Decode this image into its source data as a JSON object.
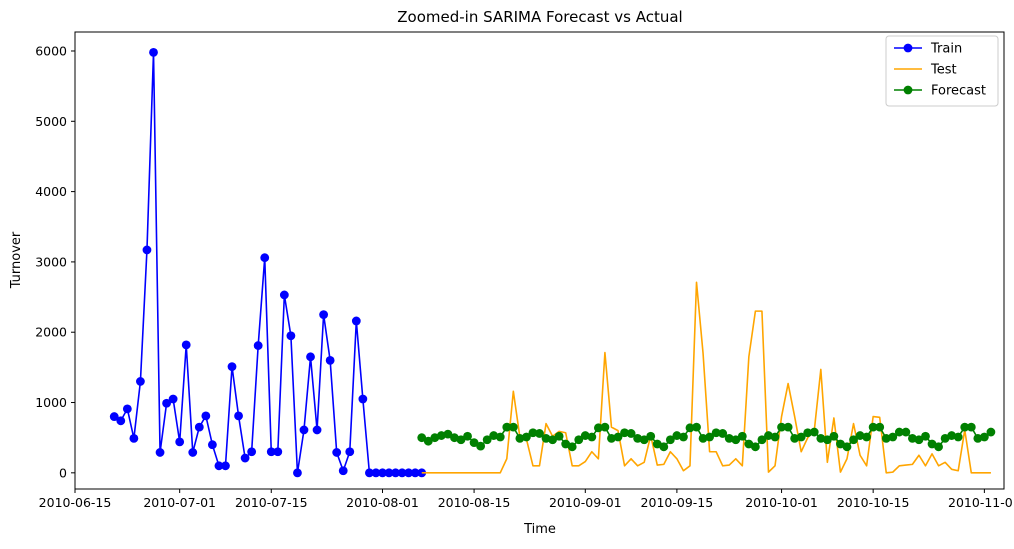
{
  "chart_data": {
    "type": "line",
    "title": "Zoomed-in SARIMA Forecast vs Actual",
    "xlabel": "Time",
    "ylabel": "Turnover",
    "xlim": [
      "2010-06-15",
      "2010-11-04"
    ],
    "ylim": [
      -230,
      6270
    ],
    "x_ticks": [
      "2010-06-15",
      "2010-07-01",
      "2010-07-15",
      "2010-08-01",
      "2010-08-15",
      "2010-09-01",
      "2010-09-15",
      "2010-10-01",
      "2010-10-15",
      "2010-11-01"
    ],
    "y_ticks": [
      0,
      1000,
      2000,
      3000,
      4000,
      5000,
      6000
    ],
    "grid": false,
    "legend_position": "top-right",
    "series": [
      {
        "name": "Train",
        "color": "#0000ff",
        "marker": "circle",
        "style": "line-with-markers",
        "x": [
          "2010-06-21",
          "2010-06-22",
          "2010-06-23",
          "2010-06-24",
          "2010-06-25",
          "2010-06-26",
          "2010-06-27",
          "2010-06-28",
          "2010-06-29",
          "2010-06-30",
          "2010-07-01",
          "2010-07-02",
          "2010-07-03",
          "2010-07-04",
          "2010-07-05",
          "2010-07-06",
          "2010-07-07",
          "2010-07-08",
          "2010-07-09",
          "2010-07-10",
          "2010-07-11",
          "2010-07-12",
          "2010-07-13",
          "2010-07-14",
          "2010-07-15",
          "2010-07-16",
          "2010-07-17",
          "2010-07-18",
          "2010-07-19",
          "2010-07-20",
          "2010-07-21",
          "2010-07-22",
          "2010-07-23",
          "2010-07-24",
          "2010-07-25",
          "2010-07-26",
          "2010-07-27",
          "2010-07-28",
          "2010-07-29",
          "2010-07-30",
          "2010-07-31",
          "2010-08-01",
          "2010-08-02",
          "2010-08-03",
          "2010-08-04",
          "2010-08-05",
          "2010-08-06",
          "2010-08-07"
        ],
        "values": [
          800,
          740,
          910,
          490,
          1300,
          3170,
          5980,
          290,
          990,
          1050,
          440,
          1820,
          290,
          650,
          810,
          400,
          100,
          100,
          1510,
          810,
          210,
          300,
          1810,
          3060,
          300,
          300,
          2530,
          1950,
          0,
          610,
          1650,
          610,
          2250,
          1600,
          290,
          30,
          300,
          2160,
          1050,
          0,
          0,
          0,
          0,
          0,
          0,
          0,
          0,
          0
        ]
      },
      {
        "name": "Test",
        "color": "#ffa500",
        "marker": "none",
        "style": "line",
        "x": [
          "2010-08-07",
          "2010-08-08",
          "2010-08-09",
          "2010-08-10",
          "2010-08-11",
          "2010-08-12",
          "2010-08-13",
          "2010-08-14",
          "2010-08-15",
          "2010-08-16",
          "2010-08-17",
          "2010-08-18",
          "2010-08-19",
          "2010-08-20",
          "2010-08-21",
          "2010-08-22",
          "2010-08-23",
          "2010-08-24",
          "2010-08-25",
          "2010-08-26",
          "2010-08-27",
          "2010-08-28",
          "2010-08-29",
          "2010-08-30",
          "2010-08-31",
          "2010-09-01",
          "2010-09-02",
          "2010-09-03",
          "2010-09-04",
          "2010-09-05",
          "2010-09-06",
          "2010-09-07",
          "2010-09-08",
          "2010-09-09",
          "2010-09-10",
          "2010-09-11",
          "2010-09-12",
          "2010-09-13",
          "2010-09-14",
          "2010-09-15",
          "2010-09-16",
          "2010-09-17",
          "2010-09-18",
          "2010-09-19",
          "2010-09-20",
          "2010-09-21",
          "2010-09-22",
          "2010-09-23",
          "2010-09-24",
          "2010-09-25",
          "2010-09-26",
          "2010-09-27",
          "2010-09-28",
          "2010-09-29",
          "2010-09-30",
          "2010-10-01",
          "2010-10-02",
          "2010-10-03",
          "2010-10-04",
          "2010-10-05",
          "2010-10-06",
          "2010-10-07",
          "2010-10-08",
          "2010-10-09",
          "2010-10-10",
          "2010-10-11",
          "2010-10-12",
          "2010-10-13",
          "2010-10-14",
          "2010-10-15",
          "2010-10-16",
          "2010-10-17",
          "2010-10-18",
          "2010-10-19",
          "2010-10-20",
          "2010-10-21",
          "2010-10-22",
          "2010-10-23",
          "2010-10-24",
          "2010-10-25",
          "2010-10-26",
          "2010-10-27",
          "2010-10-28",
          "2010-10-29",
          "2010-10-30",
          "2010-10-31",
          "2010-11-01",
          "2010-11-02"
        ],
        "values": [
          0,
          0,
          0,
          0,
          0,
          0,
          0,
          0,
          0,
          0,
          0,
          0,
          0,
          200,
          1160,
          510,
          480,
          100,
          100,
          700,
          520,
          590,
          570,
          100,
          100,
          160,
          300,
          200,
          1710,
          650,
          600,
          100,
          200,
          100,
          150,
          530,
          110,
          120,
          300,
          200,
          30,
          100,
          2710,
          1700,
          300,
          300,
          100,
          110,
          200,
          100,
          1650,
          2300,
          2300,
          10,
          100,
          800,
          1270,
          800,
          300,
          500,
          600,
          1470,
          150,
          780,
          10,
          200,
          700,
          250,
          100,
          800,
          790,
          0,
          10,
          100,
          110,
          120,
          250,
          100,
          270,
          100,
          150,
          50,
          30,
          610,
          0,
          0,
          0,
          0
        ]
      },
      {
        "name": "Forecast",
        "color": "#008000",
        "marker": "circle",
        "style": "line-with-markers",
        "x": [
          "2010-08-07",
          "2010-08-08",
          "2010-08-09",
          "2010-08-10",
          "2010-08-11",
          "2010-08-12",
          "2010-08-13",
          "2010-08-14",
          "2010-08-15",
          "2010-08-16",
          "2010-08-17",
          "2010-08-18",
          "2010-08-19",
          "2010-08-20",
          "2010-08-21",
          "2010-08-22",
          "2010-08-23",
          "2010-08-24",
          "2010-08-25",
          "2010-08-26",
          "2010-08-27",
          "2010-08-28",
          "2010-08-29",
          "2010-08-30",
          "2010-08-31",
          "2010-09-01",
          "2010-09-02",
          "2010-09-03",
          "2010-09-04",
          "2010-09-05",
          "2010-09-06",
          "2010-09-07",
          "2010-09-08",
          "2010-09-09",
          "2010-09-10",
          "2010-09-11",
          "2010-09-12",
          "2010-09-13",
          "2010-09-14",
          "2010-09-15",
          "2010-09-16",
          "2010-09-17",
          "2010-09-18",
          "2010-09-19",
          "2010-09-20",
          "2010-09-21",
          "2010-09-22",
          "2010-09-23",
          "2010-09-24",
          "2010-09-25",
          "2010-09-26",
          "2010-09-27",
          "2010-09-28",
          "2010-09-29",
          "2010-09-30",
          "2010-10-01",
          "2010-10-02",
          "2010-10-03",
          "2010-10-04",
          "2010-10-05",
          "2010-10-06",
          "2010-10-07",
          "2010-10-08",
          "2010-10-09",
          "2010-10-10",
          "2010-10-11",
          "2010-10-12",
          "2010-10-13",
          "2010-10-14",
          "2010-10-15",
          "2010-10-16",
          "2010-10-17",
          "2010-10-18",
          "2010-10-19",
          "2010-10-20",
          "2010-10-21",
          "2010-10-22",
          "2010-10-23",
          "2010-10-24",
          "2010-10-25",
          "2010-10-26",
          "2010-10-27",
          "2010-10-28",
          "2010-10-29",
          "2010-10-30",
          "2010-10-31",
          "2010-11-01",
          "2010-11-02"
        ],
        "values": [
          500,
          450,
          500,
          530,
          550,
          500,
          470,
          520,
          430,
          380,
          470,
          530,
          510,
          650,
          650,
          490,
          510,
          570,
          560,
          490,
          470,
          520,
          410,
          370,
          470,
          530,
          510,
          640,
          650,
          490,
          510,
          570,
          560,
          490,
          470,
          520,
          410,
          370,
          470,
          530,
          510,
          640,
          650,
          490,
          510,
          570,
          560,
          490,
          470,
          520,
          410,
          370,
          470,
          530,
          510,
          650,
          650,
          490,
          510,
          570,
          580,
          490,
          470,
          520,
          410,
          370,
          470,
          530,
          510,
          650,
          650,
          490,
          510,
          580,
          580,
          490,
          470,
          520,
          410,
          370,
          490,
          530,
          510,
          650,
          650,
          490,
          510,
          580
        ]
      }
    ]
  }
}
